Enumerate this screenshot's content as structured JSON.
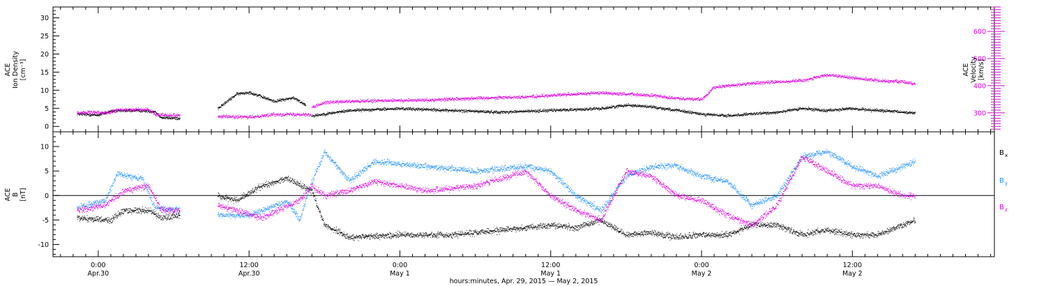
{
  "chart_data": [
    {
      "type": "scatter",
      "panel": "top",
      "left_axis": {
        "label_lines": [
          "ACE",
          "Ion Density",
          "[cm⁻³]"
        ],
        "ticks": [
          "0",
          "5",
          "10",
          "15",
          "20",
          "25",
          "30"
        ],
        "ylim": [
          -1.5,
          33
        ]
      },
      "right_axis": {
        "label_lines": [
          "ACE",
          "Velocity",
          "[km/s]"
        ],
        "ticks": [
          "300",
          "400",
          "500",
          "600"
        ],
        "ylim": [
          230,
          690
        ]
      },
      "series": [
        {
          "name": "Ion Density",
          "axis": "left",
          "color": "#000000",
          "segments": [
            {
              "t0": -1.7,
              "t1": 6.5,
              "pts": [
                [
                  -1.7,
                  3.5
                ],
                [
                  0,
                  3.2
                ],
                [
                  1,
                  4.3
                ],
                [
                  3,
                  4.5
                ],
                [
                  4.5,
                  4.2
                ],
                [
                  5,
                  2.5
                ],
                [
                  6.5,
                  2.3
                ]
              ]
            },
            {
              "t0": 9.5,
              "t1": 16.5,
              "pts": [
                [
                  9.5,
                  5
                ],
                [
                  11,
                  9
                ],
                [
                  12,
                  9.5
                ],
                [
                  14,
                  7
                ],
                [
                  15.5,
                  8
                ],
                [
                  16.5,
                  6
                ]
              ]
            },
            {
              "t0": 17,
              "t1": 65,
              "pts": [
                [
                  17,
                  3
                ],
                [
                  18,
                  3.5
                ],
                [
                  20,
                  4.5
                ],
                [
                  24,
                  5
                ],
                [
                  28,
                  4.5
                ],
                [
                  32,
                  4
                ],
                [
                  36,
                  4.5
                ],
                [
                  40,
                  5
                ],
                [
                  42,
                  6
                ],
                [
                  44,
                  5.5
                ],
                [
                  46,
                  4.5
                ],
                [
                  48,
                  3.5
                ],
                [
                  50,
                  3
                ],
                [
                  52,
                  3.5
                ],
                [
                  54,
                  4
                ],
                [
                  56,
                  5
                ],
                [
                  58,
                  4.5
                ],
                [
                  60,
                  5
                ],
                [
                  62,
                  4.5
                ],
                [
                  64,
                  4
                ],
                [
                  65,
                  3.8
                ]
              ]
            }
          ]
        },
        {
          "name": "Velocity",
          "axis": "right",
          "color": "#dd00dd",
          "segments": [
            {
              "t0": -1.7,
              "t1": 6.5,
              "pts": [
                [
                  -1.7,
                  302
                ],
                [
                  1,
                  302
                ],
                [
                  1.5,
                  312
                ],
                [
                  4,
                  313
                ],
                [
                  4.5,
                  295
                ],
                [
                  6.5,
                  292
                ]
              ]
            },
            {
              "t0": 9.5,
              "t1": 17,
              "pts": [
                [
                  9.5,
                  288
                ],
                [
                  12,
                  285
                ],
                [
                  14,
                  295
                ],
                [
                  16.5,
                  296
                ],
                [
                  17,
                  292
                ]
              ]
            },
            {
              "t0": 17,
              "t1": 65,
              "pts": [
                [
                  17,
                  320
                ],
                [
                  18,
                  340
                ],
                [
                  22,
                  345
                ],
                [
                  26,
                  348
                ],
                [
                  30,
                  355
                ],
                [
                  34,
                  360
                ],
                [
                  38,
                  370
                ],
                [
                  40,
                  375
                ],
                [
                  44,
                  365
                ],
                [
                  46,
                  355
                ],
                [
                  48,
                  350
                ],
                [
                  49,
                  395
                ],
                [
                  52,
                  410
                ],
                [
                  56,
                  420
                ],
                [
                  58,
                  440
                ],
                [
                  60,
                  430
                ],
                [
                  62,
                  420
                ],
                [
                  64,
                  415
                ],
                [
                  65,
                  408
                ]
              ]
            }
          ]
        }
      ]
    },
    {
      "type": "scatter",
      "panel": "bottom",
      "left_axis": {
        "label_lines": [
          "ACE",
          "B",
          "[nT]"
        ],
        "ticks": [
          "-10",
          "-5",
          "0",
          "5",
          "10"
        ],
        "ylim": [
          -12.5,
          13
        ]
      },
      "zero_line": true,
      "series": [
        {
          "name": "Bx",
          "color": "#000000",
          "segments": [
            {
              "t0": -1.7,
              "t1": 6.5,
              "pts": [
                [
                  -1.7,
                  -4.5
                ],
                [
                  1,
                  -5
                ],
                [
                  2,
                  -3
                ],
                [
                  4,
                  -3
                ],
                [
                  5,
                  -4.5
                ],
                [
                  6.5,
                  -4
                ]
              ]
            },
            {
              "t0": 9.5,
              "t1": 65,
              "pts": [
                [
                  9.5,
                  0
                ],
                [
                  11,
                  -1
                ],
                [
                  13,
                  2
                ],
                [
                  15,
                  3.5
                ],
                [
                  17,
                  1
                ],
                [
                  18,
                  -6
                ],
                [
                  20,
                  -8.5
                ],
                [
                  24,
                  -8
                ],
                [
                  28,
                  -8
                ],
                [
                  32,
                  -7
                ],
                [
                  36,
                  -6
                ],
                [
                  38,
                  -6.5
                ],
                [
                  40,
                  -5
                ],
                [
                  42,
                  -8
                ],
                [
                  44,
                  -7.5
                ],
                [
                  46,
                  -8.5
                ],
                [
                  48,
                  -8
                ],
                [
                  50,
                  -8
                ],
                [
                  52,
                  -6
                ],
                [
                  54,
                  -6
                ],
                [
                  56,
                  -8
                ],
                [
                  58,
                  -7
                ],
                [
                  60,
                  -8
                ],
                [
                  62,
                  -8
                ],
                [
                  64,
                  -6
                ],
                [
                  65,
                  -5
                ]
              ]
            }
          ]
        },
        {
          "name": "By",
          "color": "#1e90ff",
          "segments": [
            {
              "t0": -1.7,
              "t1": 6.5,
              "pts": [
                [
                  -1.7,
                  -2.5
                ],
                [
                  0.5,
                  -1
                ],
                [
                  1.5,
                  4.5
                ],
                [
                  3.5,
                  3.5
                ],
                [
                  4.5,
                  -2.5
                ],
                [
                  6.5,
                  -3
                ]
              ]
            },
            {
              "t0": 9.5,
              "t1": 65,
              "pts": [
                [
                  9.5,
                  -4
                ],
                [
                  12,
                  -4
                ],
                [
                  15,
                  -1
                ],
                [
                  16,
                  -5
                ],
                [
                  17,
                  3
                ],
                [
                  18,
                  9
                ],
                [
                  20,
                  3
                ],
                [
                  22,
                  7
                ],
                [
                  26,
                  6
                ],
                [
                  30,
                  5
                ],
                [
                  34,
                  6
                ],
                [
                  36,
                  5
                ],
                [
                  38,
                  0
                ],
                [
                  40,
                  -3
                ],
                [
                  42,
                  4
                ],
                [
                  44,
                  6
                ],
                [
                  46,
                  6
                ],
                [
                  48,
                  4
                ],
                [
                  50,
                  3
                ],
                [
                  52,
                  -2
                ],
                [
                  54,
                  0
                ],
                [
                  56,
                  8
                ],
                [
                  58,
                  9
                ],
                [
                  60,
                  6
                ],
                [
                  62,
                  4
                ],
                [
                  64,
                  6
                ],
                [
                  65,
                  7
                ]
              ]
            }
          ]
        },
        {
          "name": "Bz",
          "color": "#dd00dd",
          "segments": [
            {
              "t0": -1.7,
              "t1": 6.5,
              "pts": [
                [
                  -1.7,
                  -3
                ],
                [
                  0.5,
                  -2
                ],
                [
                  2,
                  1
                ],
                [
                  4,
                  2
                ],
                [
                  5,
                  -3
                ],
                [
                  6.5,
                  -3
                ]
              ]
            },
            {
              "t0": 9.5,
              "t1": 65,
              "pts": [
                [
                  9.5,
                  -2
                ],
                [
                  11,
                  -3
                ],
                [
                  13,
                  -4.5
                ],
                [
                  16,
                  -1
                ],
                [
                  17,
                  2
                ],
                [
                  18,
                  0
                ],
                [
                  20,
                  1
                ],
                [
                  22,
                  3
                ],
                [
                  26,
                  1
                ],
                [
                  30,
                  2
                ],
                [
                  34,
                  5
                ],
                [
                  36,
                  0
                ],
                [
                  38,
                  -3
                ],
                [
                  40,
                  -5
                ],
                [
                  42,
                  5
                ],
                [
                  44,
                  4
                ],
                [
                  46,
                  0
                ],
                [
                  48,
                  -1
                ],
                [
                  50,
                  -4
                ],
                [
                  52,
                  -6
                ],
                [
                  54,
                  -2
                ],
                [
                  56,
                  8
                ],
                [
                  58,
                  5
                ],
                [
                  60,
                  2
                ],
                [
                  62,
                  2
                ],
                [
                  64,
                  0
                ],
                [
                  65,
                  0
                ]
              ]
            }
          ]
        }
      ]
    }
  ],
  "x_axis": {
    "xlim": [
      -3.6,
      71.3
    ],
    "major_ticks": [
      {
        "t": 0,
        "time": "0:00",
        "date": "Apr.30"
      },
      {
        "t": 12,
        "time": "12:00",
        "date": "Apr.30"
      },
      {
        "t": 24,
        "time": "0:00",
        "date": "May 1"
      },
      {
        "t": 36,
        "time": "12:00",
        "date": "May 1"
      },
      {
        "t": 48,
        "time": "0:00",
        "date": "May 2"
      },
      {
        "t": 60,
        "time": "12:00",
        "date": "May 2"
      }
    ],
    "title": "hours:minutes, Apr. 29, 2015 — May  2, 2015"
  },
  "legend": {
    "items": [
      {
        "symbol": "B",
        "sub": "x",
        "color": "#000000"
      },
      {
        "symbol": "B",
        "sub": "y",
        "color": "#1e90ff"
      },
      {
        "symbol": "B",
        "sub": "z",
        "color": "#dd00dd"
      }
    ]
  }
}
